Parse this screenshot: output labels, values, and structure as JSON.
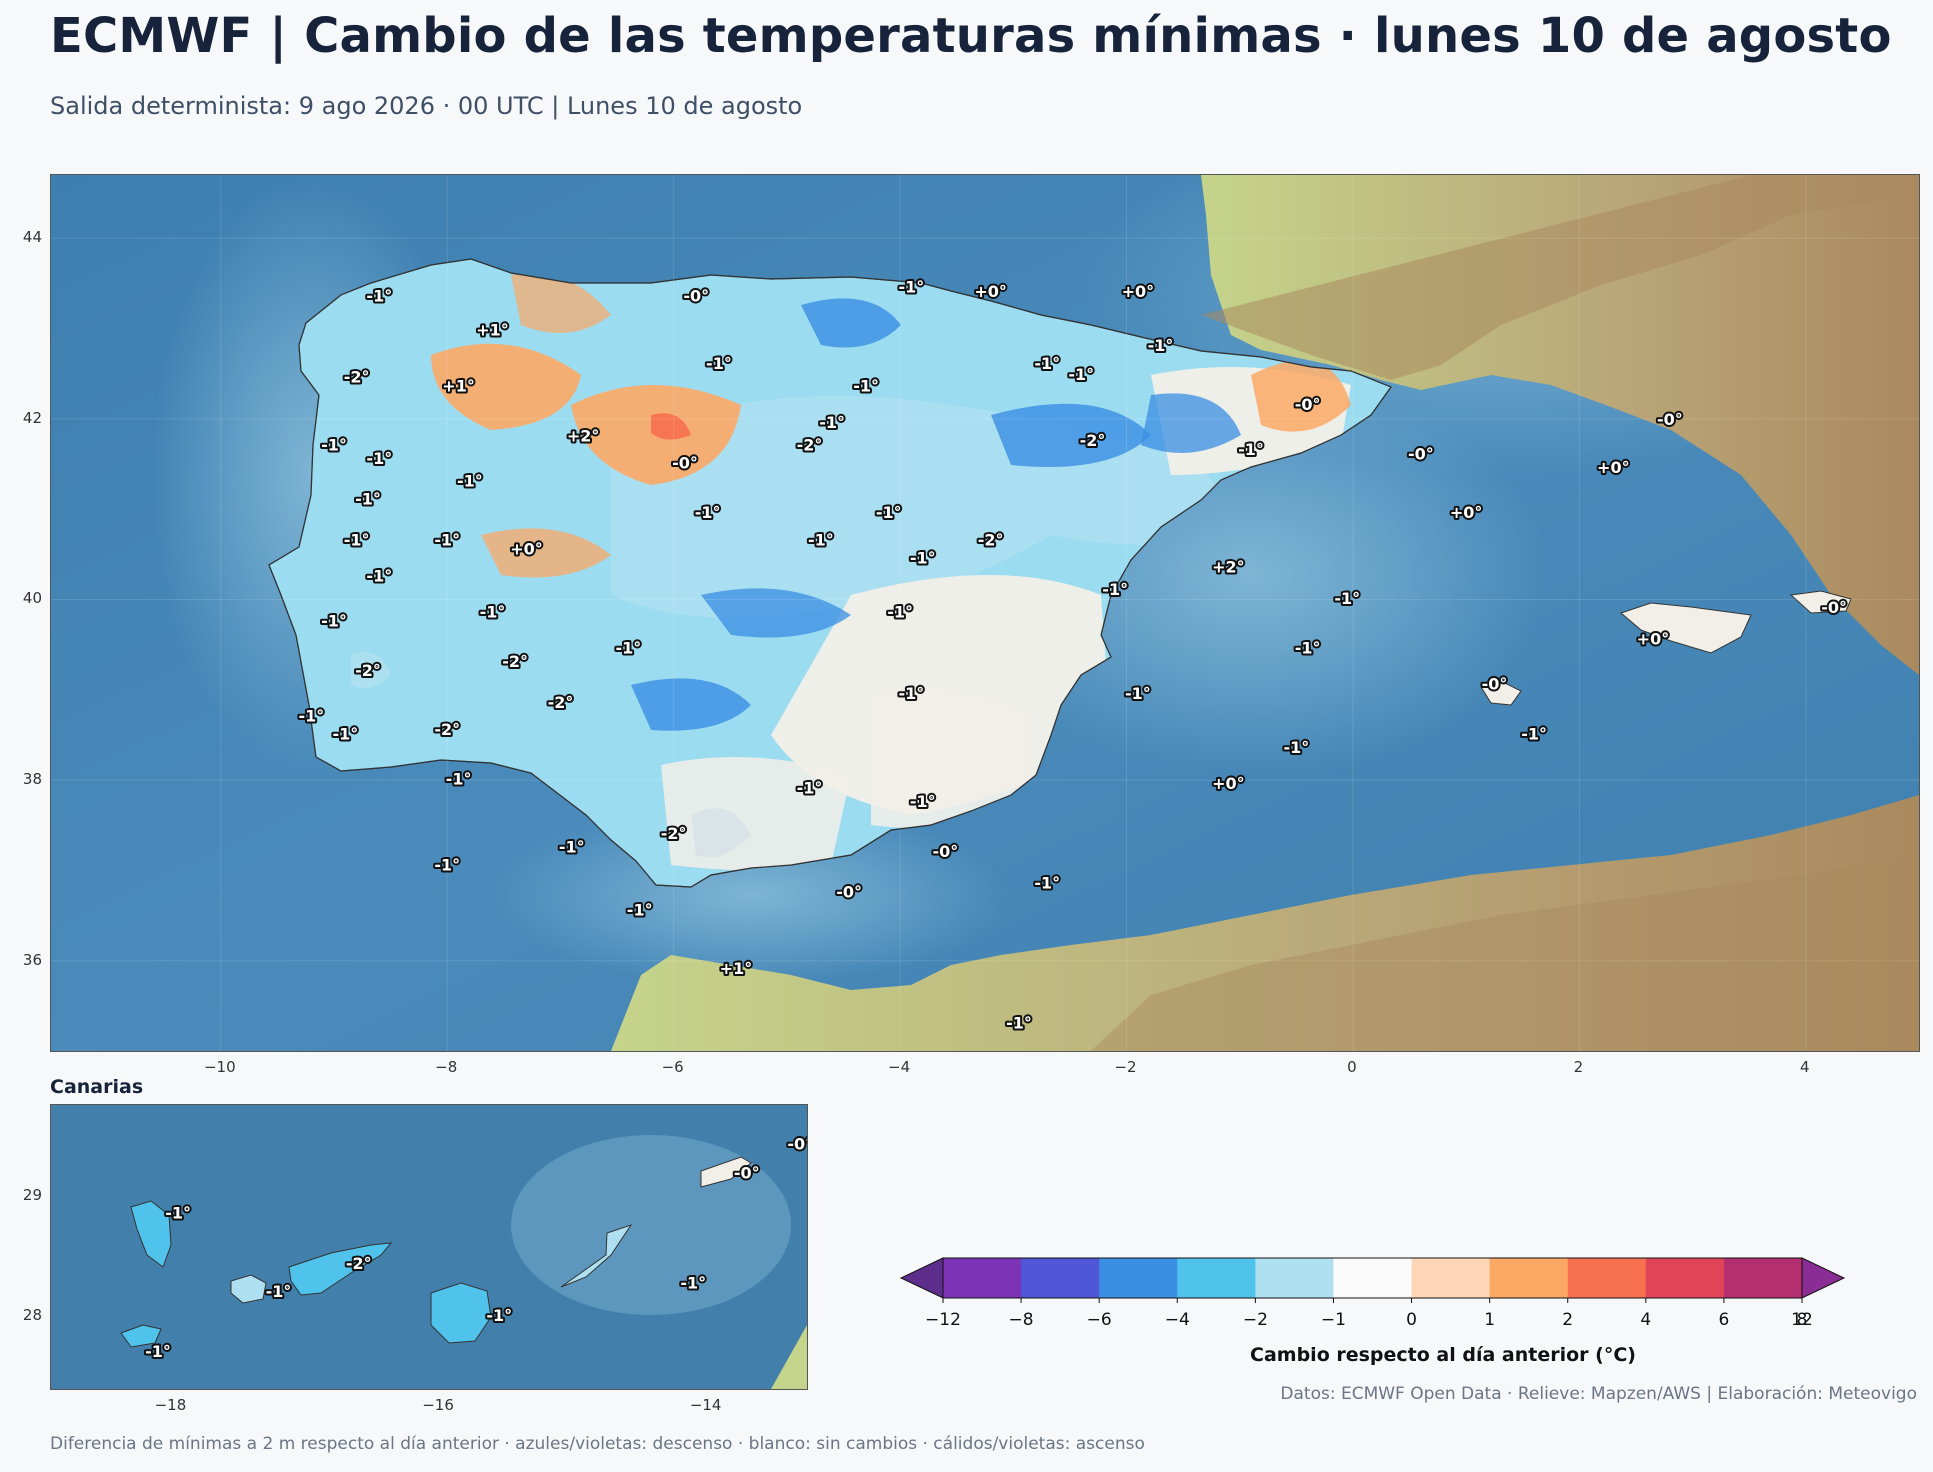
{
  "header": {
    "title": "ECMWF | Cambio de las temperaturas mínimas · lunes 10 de agosto",
    "subtitle": "Salida determinista: 9 ago 2026 · 00 UTC  |  Lunes 10 de agosto"
  },
  "main_map": {
    "lon_ticks": [
      {
        "value": -10,
        "label": "−10"
      },
      {
        "value": -8,
        "label": "−8"
      },
      {
        "value": -6,
        "label": "−6"
      },
      {
        "value": -4,
        "label": "−4"
      },
      {
        "value": -2,
        "label": "−2"
      },
      {
        "value": 0,
        "label": "0"
      },
      {
        "value": 2,
        "label": "2"
      },
      {
        "value": 4,
        "label": "4"
      }
    ],
    "lat_ticks": [
      {
        "value": 44,
        "label": "44"
      },
      {
        "value": 42,
        "label": "42"
      },
      {
        "value": 40,
        "label": "40"
      },
      {
        "value": 38,
        "label": "38"
      },
      {
        "value": 36,
        "label": "36"
      }
    ],
    "labels": [
      {
        "lon": -8.6,
        "lat": 43.35,
        "text": "-1°"
      },
      {
        "lon": -5.8,
        "lat": 43.35,
        "text": "-0°"
      },
      {
        "lon": -3.9,
        "lat": 43.45,
        "text": "-1°"
      },
      {
        "lon": -3.2,
        "lat": 43.4,
        "text": "+0°"
      },
      {
        "lon": -1.9,
        "lat": 43.4,
        "text": "+0°"
      },
      {
        "lon": -7.6,
        "lat": 42.97,
        "text": "+1°"
      },
      {
        "lon": -1.7,
        "lat": 42.8,
        "text": "-1°"
      },
      {
        "lon": -8.8,
        "lat": 42.45,
        "text": "-2°"
      },
      {
        "lon": -5.6,
        "lat": 42.6,
        "text": "-1°"
      },
      {
        "lon": -2.7,
        "lat": 42.6,
        "text": "-1°"
      },
      {
        "lon": -2.4,
        "lat": 42.48,
        "text": "-1°"
      },
      {
        "lon": -7.9,
        "lat": 42.35,
        "text": "+1°"
      },
      {
        "lon": -4.3,
        "lat": 42.35,
        "text": "-1°"
      },
      {
        "lon": -0.4,
        "lat": 42.15,
        "text": "-0°"
      },
      {
        "lon": 2.8,
        "lat": 41.98,
        "text": "-0°"
      },
      {
        "lon": -4.6,
        "lat": 41.95,
        "text": "-1°"
      },
      {
        "lon": -6.8,
        "lat": 41.8,
        "text": "+2°"
      },
      {
        "lon": -2.3,
        "lat": 41.75,
        "text": "-2°"
      },
      {
        "lon": -9.0,
        "lat": 41.7,
        "text": "-1°"
      },
      {
        "lon": -4.8,
        "lat": 41.7,
        "text": "-2°"
      },
      {
        "lon": -0.9,
        "lat": 41.65,
        "text": "-1°"
      },
      {
        "lon": 0.6,
        "lat": 41.6,
        "text": "-0°"
      },
      {
        "lon": -8.6,
        "lat": 41.55,
        "text": "-1°"
      },
      {
        "lon": -5.9,
        "lat": 41.5,
        "text": "-0°"
      },
      {
        "lon": 2.3,
        "lat": 41.45,
        "text": "+0°"
      },
      {
        "lon": -7.8,
        "lat": 41.3,
        "text": "-1°"
      },
      {
        "lon": -8.7,
        "lat": 41.1,
        "text": "-1°"
      },
      {
        "lon": -5.7,
        "lat": 40.95,
        "text": "-1°"
      },
      {
        "lon": -4.1,
        "lat": 40.95,
        "text": "-1°"
      },
      {
        "lon": 1.0,
        "lat": 40.95,
        "text": "+0°"
      },
      {
        "lon": -8.8,
        "lat": 40.65,
        "text": "-1°"
      },
      {
        "lon": -8.0,
        "lat": 40.65,
        "text": "-1°"
      },
      {
        "lon": -4.7,
        "lat": 40.65,
        "text": "-1°"
      },
      {
        "lon": -3.2,
        "lat": 40.65,
        "text": "-2°"
      },
      {
        "lon": -7.3,
        "lat": 40.55,
        "text": "+0°"
      },
      {
        "lon": -3.8,
        "lat": 40.45,
        "text": "-1°"
      },
      {
        "lon": -1.1,
        "lat": 40.35,
        "text": "+2°"
      },
      {
        "lon": -8.6,
        "lat": 40.25,
        "text": "-1°"
      },
      {
        "lon": -2.1,
        "lat": 40.1,
        "text": "-1°"
      },
      {
        "lon": -0.05,
        "lat": 40.0,
        "text": "-1°"
      },
      {
        "lon": 4.25,
        "lat": 39.9,
        "text": "-0°"
      },
      {
        "lon": -7.6,
        "lat": 39.85,
        "text": "-1°"
      },
      {
        "lon": -4.0,
        "lat": 39.85,
        "text": "-1°"
      },
      {
        "lon": -9.0,
        "lat": 39.75,
        "text": "-1°"
      },
      {
        "lon": 2.65,
        "lat": 39.55,
        "text": "+0°"
      },
      {
        "lon": -6.4,
        "lat": 39.45,
        "text": "-1°"
      },
      {
        "lon": -0.4,
        "lat": 39.45,
        "text": "-1°"
      },
      {
        "lon": -7.4,
        "lat": 39.3,
        "text": "-2°"
      },
      {
        "lon": -8.7,
        "lat": 39.2,
        "text": "-2°"
      },
      {
        "lon": 1.25,
        "lat": 39.05,
        "text": "-0°"
      },
      {
        "lon": -3.9,
        "lat": 38.95,
        "text": "-1°"
      },
      {
        "lon": -1.9,
        "lat": 38.95,
        "text": "-1°"
      },
      {
        "lon": -7.0,
        "lat": 38.85,
        "text": "-2°"
      },
      {
        "lon": -9.2,
        "lat": 38.7,
        "text": "-1°"
      },
      {
        "lon": -8.0,
        "lat": 38.55,
        "text": "-2°"
      },
      {
        "lon": -8.9,
        "lat": 38.5,
        "text": "-1°"
      },
      {
        "lon": 1.6,
        "lat": 38.5,
        "text": "-1°"
      },
      {
        "lon": -0.5,
        "lat": 38.35,
        "text": "-1°"
      },
      {
        "lon": -7.9,
        "lat": 38.0,
        "text": "-1°"
      },
      {
        "lon": -1.1,
        "lat": 37.95,
        "text": "+0°"
      },
      {
        "lon": -4.8,
        "lat": 37.9,
        "text": "-1°"
      },
      {
        "lon": -3.8,
        "lat": 37.75,
        "text": "-1°"
      },
      {
        "lon": -6.0,
        "lat": 37.4,
        "text": "-2°"
      },
      {
        "lon": -6.9,
        "lat": 37.25,
        "text": "-1°"
      },
      {
        "lon": -3.6,
        "lat": 37.2,
        "text": "-0°"
      },
      {
        "lon": -8.0,
        "lat": 37.05,
        "text": "-1°"
      },
      {
        "lon": -2.7,
        "lat": 36.85,
        "text": "-1°"
      },
      {
        "lon": -4.45,
        "lat": 36.75,
        "text": "-0°"
      },
      {
        "lon": -6.3,
        "lat": 36.55,
        "text": "-1°"
      },
      {
        "lon": -5.45,
        "lat": 35.9,
        "text": "+1°"
      },
      {
        "lon": -2.95,
        "lat": 35.3,
        "text": "-1°"
      }
    ]
  },
  "canary_map": {
    "title": "Canarias",
    "lon_ticks": [
      {
        "value": -18,
        "label": "−18"
      },
      {
        "value": -16,
        "label": "−16"
      },
      {
        "value": -14,
        "label": "−14"
      }
    ],
    "lat_ticks": [
      {
        "value": 29,
        "label": "29"
      },
      {
        "value": 28,
        "label": "28"
      }
    ],
    "labels": [
      {
        "lon": -17.95,
        "lat": 28.85,
        "text": "-1°"
      },
      {
        "lon": -17.2,
        "lat": 28.2,
        "text": "-1°"
      },
      {
        "lon": -16.6,
        "lat": 28.43,
        "text": "-2°"
      },
      {
        "lon": -15.55,
        "lat": 28.0,
        "text": "-1°"
      },
      {
        "lon": -14.1,
        "lat": 28.27,
        "text": "-1°"
      },
      {
        "lon": -13.7,
        "lat": 29.18,
        "text": "-0°"
      },
      {
        "lon": -13.3,
        "lat": 29.42,
        "text": "-0°"
      },
      {
        "lon": -18.1,
        "lat": 27.7,
        "text": "-1°"
      }
    ]
  },
  "colorbar": {
    "label": "Cambio respecto al día anterior (°C)",
    "ticks": [
      "−12",
      "−8",
      "−6",
      "−4",
      "−2",
      "−1",
      "0",
      "1",
      "2",
      "4",
      "6",
      "8",
      "12"
    ],
    "colors": [
      "#5e2e8c",
      "#7d33b5",
      "#4f57d6",
      "#3a8ee3",
      "#4fc3ec",
      "#aee0f1",
      "#fafafa",
      "#fed6b5",
      "#fca865",
      "#f7704f",
      "#df4457",
      "#b42f70",
      "#8a2d94"
    ]
  },
  "footer": {
    "credits": "Datos: ECMWF Open Data · Relieve: Mapzen/AWS  |  Elaboración: Meteovigo",
    "note": "Diferencia de mínimas a 2 m respecto al día anterior · azules/violetas: descenso · blanco: sin cambios · cálidos/violetas: ascenso"
  }
}
